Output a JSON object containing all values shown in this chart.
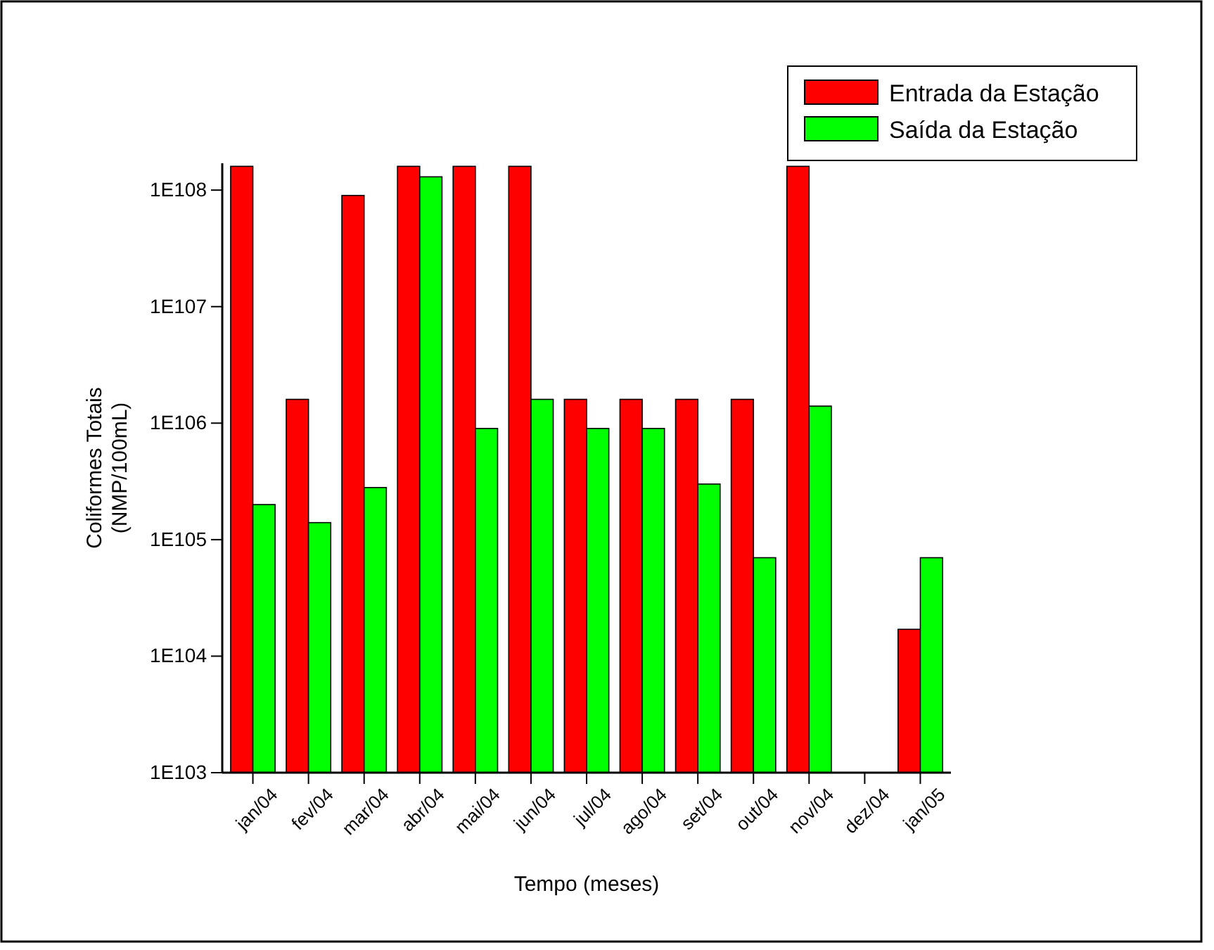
{
  "chart_data": {
    "type": "bar",
    "xlabel": "Tempo (meses)",
    "ylabel": "Coliformes Totais\n(NMP/100mL)",
    "categories": [
      "jan/04",
      "fev/04",
      "mar/04",
      "abr/04",
      "mai/04",
      "jun/04",
      "jul/04",
      "ago/04",
      "set/04",
      "out/04",
      "nov/04",
      "dez/04",
      "jan/05"
    ],
    "series": [
      {
        "name": "Entrada da Estação",
        "color": "#ff0000",
        "values": [
          1.6e+108,
          1.6e+106,
          9e+107,
          1.6e+108,
          1.6e+108,
          1.6e+108,
          1.6e+106,
          1.6e+106,
          1.6e+106,
          1.6e+106,
          1.6e+108,
          null,
          1.7e+104
        ]
      },
      {
        "name": "Saída da Estação",
        "color": "#00ff00",
        "values": [
          2e+105,
          1.4e+105,
          2.8e+105,
          1.3e+108,
          9e+105,
          1.6e+106,
          9e+105,
          9e+105,
          3e+105,
          7e+104,
          1.4e+106,
          null,
          7e+104
        ]
      }
    ],
    "log": true,
    "ylim": [
      1e+103,
      1.7e+108
    ],
    "yticks": [
      {
        "value": 1e+103,
        "label": "1E103"
      },
      {
        "value": 1e+104,
        "label": "1E104"
      },
      {
        "value": 1e+105,
        "label": "1E105"
      },
      {
        "value": 1e+106,
        "label": "1E106"
      },
      {
        "value": 1e+107,
        "label": "1E107"
      },
      {
        "value": 1e+108,
        "label": "1E108"
      }
    ],
    "grid": false,
    "legend": "top right"
  }
}
